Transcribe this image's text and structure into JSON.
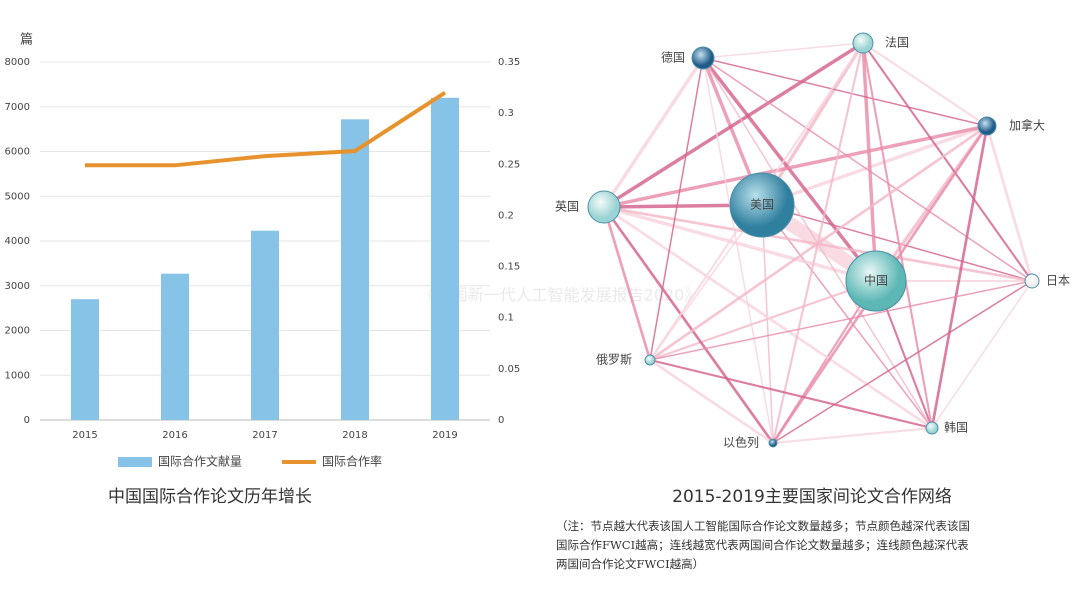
{
  "chart_data": {
    "type": "bar",
    "title": "中国国际合作论文历年增长",
    "y_label": "篇",
    "categories": [
      "2015",
      "2016",
      "2017",
      "2018",
      "2019"
    ],
    "series": [
      {
        "name": "国际合作文献量",
        "color": "#86c3e6",
        "values": [
          2700,
          3270,
          4230,
          6720,
          7200
        ]
      },
      {
        "name": "国际合作率",
        "color": "#e8922e",
        "type": "line",
        "axis": "y2",
        "values": [
          0.249,
          0.249,
          0.258,
          0.263,
          0.32
        ]
      }
    ],
    "ylim": [
      0,
      8000
    ],
    "yticks": [
      0,
      1000,
      2000,
      3000,
      4000,
      5000,
      6000,
      7000,
      8000
    ],
    "y2lim": [
      0,
      0.35
    ],
    "y2ticks": [
      0,
      0.05,
      0.1,
      0.15,
      0.2,
      0.25,
      0.3,
      0.35
    ],
    "grid": true,
    "legend": "bottom"
  },
  "watermark": "《中国新一代人工智能发展报告2020》",
  "network": {
    "title": "2015-2019主要国家间论文合作网络",
    "nodes": [
      {
        "label": "美国"
      },
      {
        "label": "中国"
      },
      {
        "label": "英国"
      },
      {
        "label": "德国"
      },
      {
        "label": "法国"
      },
      {
        "label": "加拿大"
      },
      {
        "label": "日本"
      },
      {
        "label": "韩国"
      },
      {
        "label": "以色列"
      },
      {
        "label": "俄罗斯"
      }
    ],
    "note_lines": [
      "（注：节点越大代表该国人工智能国际合作论文数量越多；节点颜色越深代表该国",
      "国际合作FWCI越高；连线越宽代表两国间合作论文数量越多；连线颜色越深代表",
      "两国间合作论文FWCI越高）"
    ]
  }
}
